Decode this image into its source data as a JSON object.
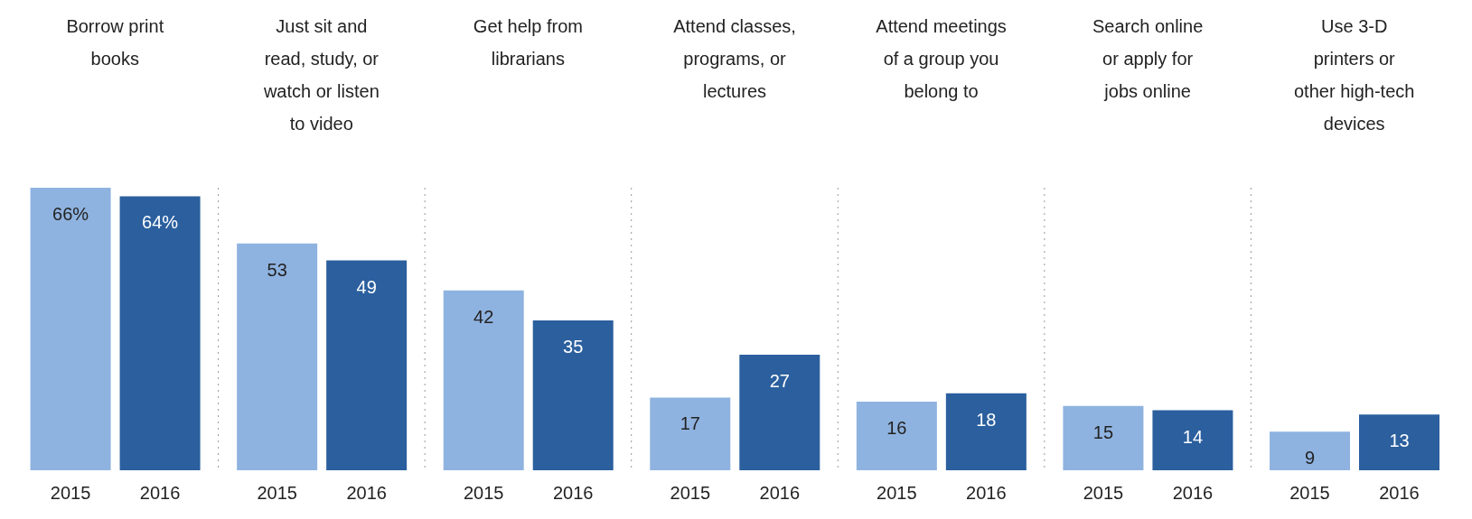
{
  "chart_data": {
    "type": "bar",
    "categories": [
      "Borrow print books",
      "Just sit and read, study, or watch or listen to video",
      "Get help from librarians",
      "Attend classes, programs, or lectures",
      "Attend meetings of a group you belong to",
      "Search online or apply for jobs online",
      "Use 3-D printers or other high-tech devices"
    ],
    "series": [
      {
        "name": "2015",
        "color": "#8fb3e0",
        "values": [
          66,
          53,
          42,
          17,
          16,
          15,
          9
        ],
        "value_labels": [
          "66%",
          "53",
          "42",
          "17",
          "16",
          "15",
          "9"
        ]
      },
      {
        "name": "2016",
        "color": "#2b5f9e",
        "values": [
          64,
          49,
          35,
          27,
          18,
          14,
          13
        ],
        "value_labels": [
          "64%",
          "49",
          "35",
          "27",
          "18",
          "14",
          "13"
        ]
      }
    ],
    "grid": "x"
  }
}
